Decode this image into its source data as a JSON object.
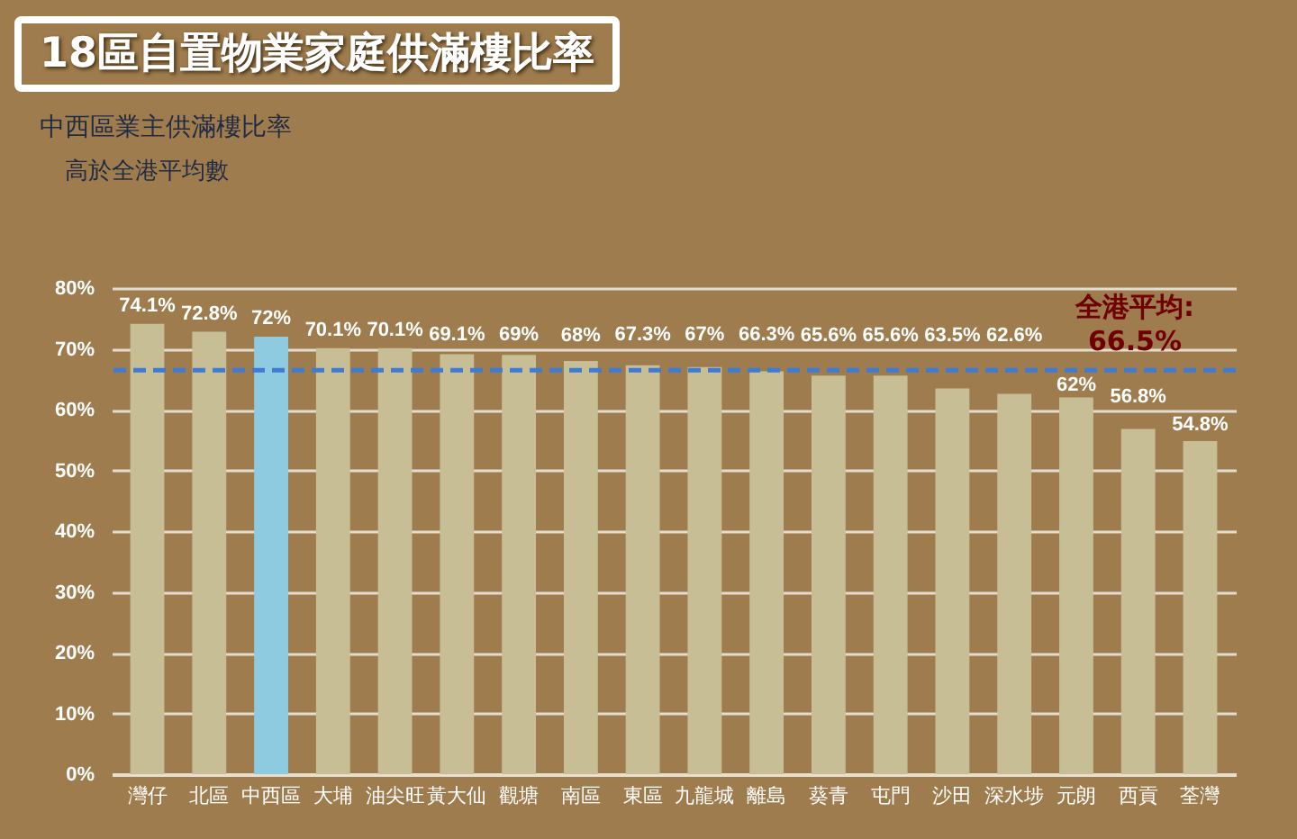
{
  "chart_data": {
    "type": "bar",
    "title": "18區自置物業家庭供滿樓比率",
    "annotations": [
      "中西區業主供滿樓比率",
      "高於全港平均數"
    ],
    "categories": [
      "灣仔",
      "北區",
      "中西區",
      "大埔",
      "油尖旺",
      "黃大仙",
      "觀塘",
      "南區",
      "東區",
      "九龍城",
      "離島",
      "葵青",
      "屯門",
      "沙田",
      "深水埗",
      "元朗",
      "西貢",
      "荃灣"
    ],
    "values": [
      74.1,
      72.8,
      72,
      70.1,
      70.1,
      69.1,
      69,
      68,
      67.3,
      67,
      66.3,
      65.6,
      65.6,
      63.5,
      62.6,
      62,
      56.8,
      54.8
    ],
    "value_labels": [
      "74.1%",
      "72.8%",
      "72%",
      "70.1%",
      "70.1%",
      "69.1%",
      "69%",
      "68%",
      "67.3%",
      "67%",
      "66.3%",
      "65.6%",
      "65.6%",
      "63.5%",
      "62.6%",
      "62%",
      "56.8%",
      "54.8%"
    ],
    "colors": [
      "#c8be96",
      "#c8be96",
      "#8ecbe0",
      "#c8be96",
      "#c8be96",
      "#c8be96",
      "#c8be96",
      "#c8be96",
      "#c8be96",
      "#c8be96",
      "#c8be96",
      "#c8be96",
      "#c8be96",
      "#c8be96",
      "#c8be96",
      "#c8be96",
      "#c8be96",
      "#c8be96"
    ],
    "ylim": [
      0,
      80
    ],
    "yticks": [
      {
        "value": 0,
        "label": "0%"
      },
      {
        "value": 10,
        "label": "10%"
      },
      {
        "value": 20,
        "label": "20%"
      },
      {
        "value": 30,
        "label": "30%"
      },
      {
        "value": 40,
        "label": "40%"
      },
      {
        "value": 50,
        "label": "50%"
      },
      {
        "value": 60,
        "label": "60%"
      },
      {
        "value": 70,
        "label": "70%"
      },
      {
        "value": 80,
        "label": "80%"
      }
    ],
    "grid": "y",
    "ref_lines": [
      {
        "axis": "y",
        "value": 66.5,
        "label": "全港平均: 66.5%",
        "color": "#3f7bd0",
        "line_style": "dashed"
      }
    ]
  }
}
